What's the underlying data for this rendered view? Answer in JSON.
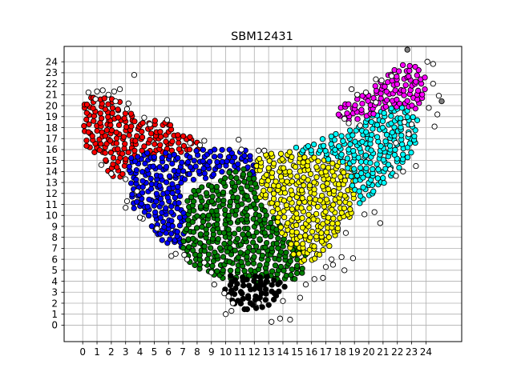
{
  "chart_data": {
    "type": "scatter",
    "title": "SBM12431",
    "xlabel": "",
    "ylabel": "",
    "xlim": [
      -1.3,
      26.5
    ],
    "ylim": [
      -1.5,
      25.4
    ],
    "x_ticks": [
      0,
      1,
      2,
      3,
      4,
      5,
      6,
      7,
      8,
      9,
      10,
      11,
      12,
      13,
      14,
      15,
      16,
      17,
      18,
      19,
      20,
      21,
      22,
      23,
      24
    ],
    "y_ticks": [
      0,
      1,
      2,
      3,
      4,
      5,
      6,
      7,
      8,
      9,
      10,
      11,
      12,
      13,
      14,
      15,
      16,
      17,
      18,
      19,
      20,
      21,
      22,
      23,
      24
    ],
    "grid": true,
    "legend": "none",
    "marker_edge_color": "#000000",
    "series": [
      {
        "color": "#ff0000",
        "region": {
          "kind": "poly",
          "pts": [
            [
              0.0,
              19.8
            ],
            [
              0.3,
              21.0
            ],
            [
              2.0,
              21.0
            ],
            [
              4.0,
              18.8
            ],
            [
              5.8,
              18.6
            ],
            [
              6.8,
              17.5
            ],
            [
              7.9,
              17.0
            ],
            [
              8.3,
              16.0
            ],
            [
              5.2,
              15.3
            ],
            [
              3.2,
              15.3
            ],
            [
              2.9,
              13.1
            ],
            [
              2.0,
              13.6
            ],
            [
              1.2,
              15.1
            ],
            [
              0.2,
              16.2
            ]
          ]
        },
        "count": 230
      },
      {
        "color": "#0000ff",
        "region": {
          "kind": "poly",
          "pts": [
            [
              3.0,
              15.5
            ],
            [
              5.2,
              15.8
            ],
            [
              7.3,
              15.7
            ],
            [
              8.0,
              16.0
            ],
            [
              11.0,
              16.1
            ],
            [
              12.3,
              15.8
            ],
            [
              12.3,
              13.0
            ],
            [
              11.0,
              14.2
            ],
            [
              9.5,
              13.5
            ],
            [
              7.0,
              13.0
            ],
            [
              7.3,
              9.2
            ],
            [
              7.0,
              7.0
            ],
            [
              6.3,
              7.0
            ],
            [
              5.0,
              8.0
            ],
            [
              4.5,
              10.0
            ],
            [
              3.6,
              10.5
            ],
            [
              3.3,
              12.0
            ],
            [
              3.0,
              14.0
            ]
          ]
        },
        "count": 220
      },
      {
        "color": "#008000",
        "region": {
          "kind": "poly",
          "pts": [
            [
              7.3,
              12.0
            ],
            [
              9.0,
              13.0
            ],
            [
              11.0,
              14.5
            ],
            [
              12.3,
              13.2
            ],
            [
              12.5,
              11.0
            ],
            [
              13.5,
              10.0
            ],
            [
              14.5,
              7.8
            ],
            [
              15.8,
              6.5
            ],
            [
              15.2,
              4.2
            ],
            [
              14.0,
              3.9
            ],
            [
              12.2,
              3.8
            ],
            [
              11.0,
              3.9
            ],
            [
              10.0,
              4.0
            ],
            [
              8.5,
              4.7
            ],
            [
              7.5,
              5.5
            ],
            [
              7.0,
              7.0
            ],
            [
              7.2,
              10.0
            ]
          ]
        },
        "count": 340
      },
      {
        "color": "#000000",
        "region": {
          "kind": "poly",
          "pts": [
            [
              10.2,
              4.6
            ],
            [
              11.8,
              4.6
            ],
            [
              13.8,
              4.4
            ],
            [
              14.4,
              3.5
            ],
            [
              13.6,
              2.2
            ],
            [
              12.7,
              1.5
            ],
            [
              11.3,
              1.1
            ],
            [
              10.5,
              2.0
            ],
            [
              9.9,
              3.0
            ]
          ]
        },
        "count": 90
      },
      {
        "color": "#ffff00",
        "region": {
          "kind": "poly",
          "pts": [
            [
              12.1,
              15.3
            ],
            [
              13.5,
              15.8
            ],
            [
              15.5,
              16.0
            ],
            [
              16.5,
              15.3
            ],
            [
              18.0,
              15.0
            ],
            [
              19.2,
              14.5
            ],
            [
              19.2,
              12.5
            ],
            [
              18.8,
              10.0
            ],
            [
              18.0,
              9.0
            ],
            [
              17.2,
              7.0
            ],
            [
              16.2,
              6.0
            ],
            [
              15.5,
              5.2
            ],
            [
              14.7,
              6.5
            ],
            [
              14.0,
              8.0
            ],
            [
              13.3,
              10.0
            ],
            [
              12.5,
              11.0
            ],
            [
              12.1,
              13.0
            ]
          ]
        },
        "count": 240
      },
      {
        "color": "#00ffff",
        "region": {
          "kind": "poly",
          "pts": [
            [
              14.4,
              16.2
            ],
            [
              16.0,
              16.6
            ],
            [
              17.5,
              17.5
            ],
            [
              19.0,
              18.0
            ],
            [
              20.5,
              19.5
            ],
            [
              22.5,
              20.0
            ],
            [
              23.6,
              18.5
            ],
            [
              23.3,
              16.2
            ],
            [
              22.6,
              15.0
            ],
            [
              21.2,
              13.0
            ],
            [
              20.3,
              12.0
            ],
            [
              19.3,
              11.0
            ],
            [
              18.8,
              12.5
            ],
            [
              18.5,
              14.5
            ],
            [
              16.5,
              15.3
            ],
            [
              14.8,
              15.8
            ]
          ]
        },
        "count": 220
      },
      {
        "color": "#ff00ff",
        "region": {
          "kind": "poly",
          "pts": [
            [
              17.5,
              19.5
            ],
            [
              18.5,
              20.5
            ],
            [
              19.5,
              21.0
            ],
            [
              20.5,
              22.0
            ],
            [
              21.5,
              23.3
            ],
            [
              22.5,
              23.8
            ],
            [
              23.5,
              23.5
            ],
            [
              24.2,
              22.5
            ],
            [
              24.0,
              21.0
            ],
            [
              23.2,
              19.5
            ],
            [
              22.5,
              20.0
            ],
            [
              21.0,
              19.5
            ],
            [
              20.0,
              19.0
            ],
            [
              18.5,
              18.5
            ]
          ]
        },
        "count": 150
      },
      {
        "color": "#ffffff",
        "region": {
          "kind": "scatter",
          "pts": [
            [
              3.6,
              22.8
            ],
            [
              0.4,
              21.2
            ],
            [
              0.9,
              20.6
            ],
            [
              1.0,
              21.3
            ],
            [
              1.4,
              21.4
            ],
            [
              1.8,
              21.0
            ],
            [
              2.2,
              21.3
            ],
            [
              2.3,
              20.4
            ],
            [
              3.2,
              20.2
            ],
            [
              2.6,
              21.5
            ],
            [
              3.1,
              19.7
            ],
            [
              4.3,
              18.9
            ],
            [
              4.7,
              18.3
            ],
            [
              5.9,
              18.7
            ],
            [
              7.5,
              16.6
            ],
            [
              8.2,
              16.4
            ],
            [
              8.5,
              16.8
            ],
            [
              10.9,
              16.9
            ],
            [
              11.1,
              16.0
            ],
            [
              12.3,
              15.9
            ],
            [
              12.7,
              15.9
            ],
            [
              1.3,
              14.6
            ],
            [
              2.0,
              13.8
            ],
            [
              3.0,
              13.3
            ],
            [
              3.8,
              12.2
            ],
            [
              3.1,
              11.3
            ],
            [
              3.0,
              10.7
            ],
            [
              4.2,
              9.7
            ],
            [
              5.2,
              8.8
            ],
            [
              4.0,
              9.8
            ],
            [
              6.2,
              6.3
            ],
            [
              6.5,
              6.5
            ],
            [
              7.1,
              6.4
            ],
            [
              7.3,
              6.0
            ],
            [
              8.5,
              5.7
            ],
            [
              9.0,
              4.8
            ],
            [
              9.2,
              3.7
            ],
            [
              10.2,
              2.6
            ],
            [
              10.5,
              2.0
            ],
            [
              9.9,
              2.9
            ],
            [
              10.0,
              1.0
            ],
            [
              10.4,
              1.3
            ],
            [
              12.3,
              2.0
            ],
            [
              13.8,
              0.6
            ],
            [
              14.5,
              0.5
            ],
            [
              13.2,
              0.3
            ],
            [
              14.0,
              2.2
            ],
            [
              15.2,
              2.5
            ],
            [
              15.6,
              3.7
            ],
            [
              16.2,
              4.2
            ],
            [
              16.8,
              4.3
            ],
            [
              17.0,
              5.3
            ],
            [
              17.4,
              6.0
            ],
            [
              17.5,
              5.5
            ],
            [
              18.3,
              5.0
            ],
            [
              18.9,
              6.1
            ],
            [
              18.1,
              6.2
            ],
            [
              18.4,
              8.4
            ],
            [
              19.7,
              10.1
            ],
            [
              20.4,
              10.3
            ],
            [
              20.8,
              9.3
            ],
            [
              18.6,
              18.4
            ],
            [
              19.4,
              18.2
            ],
            [
              18.3,
              18.8
            ],
            [
              20.5,
              20.3
            ],
            [
              18.8,
              21.5
            ],
            [
              19.2,
              21.0
            ],
            [
              19.8,
              21.2
            ],
            [
              20.5,
              22.4
            ],
            [
              20.9,
              22.3
            ],
            [
              21.6,
              22.7
            ],
            [
              24.1,
              24.0
            ],
            [
              24.5,
              23.8
            ],
            [
              24.5,
              22.0
            ],
            [
              24.9,
              20.9
            ],
            [
              24.2,
              19.8
            ],
            [
              24.8,
              19.2
            ],
            [
              24.6,
              18.1
            ],
            [
              23.0,
              18.3
            ],
            [
              22.5,
              18.5
            ],
            [
              22.8,
              17.4
            ],
            [
              21.9,
              16.6
            ],
            [
              23.3,
              14.5
            ],
            [
              22.4,
              14.0
            ],
            [
              21.5,
              14.2
            ],
            [
              21.9,
              13.6
            ]
          ]
        },
        "count": 0
      },
      {
        "color": "#808080",
        "region": {
          "kind": "scatter",
          "pts": [
            [
              22.7,
              25.1
            ],
            [
              25.1,
              20.4
            ]
          ]
        },
        "count": 0
      }
    ]
  }
}
